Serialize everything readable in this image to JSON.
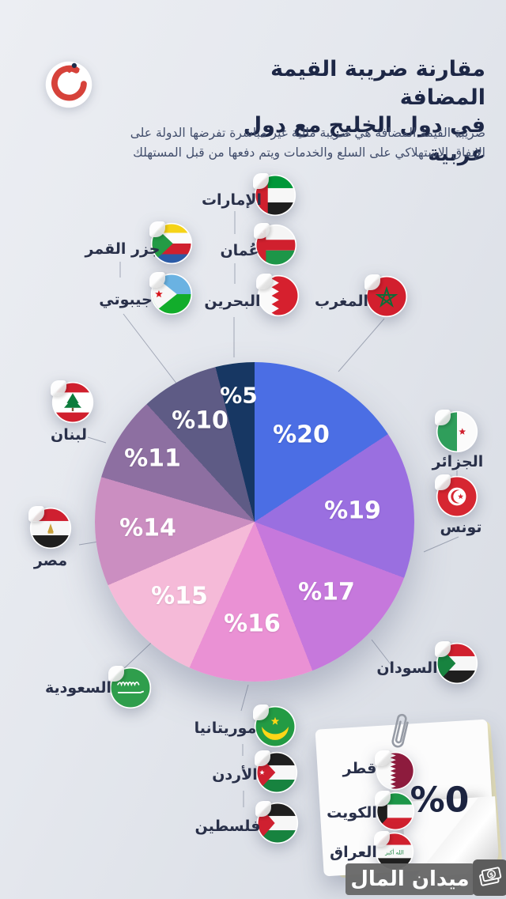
{
  "header": {
    "logo_icon": "khaleej-falcon-logo",
    "title_line1": "مقارنة ضريبة القيمة المضافة",
    "title_line2": "في دول الخليج مع دول عربية",
    "subtitle": "ضريبة القيمة المضافة هي ضريبة مالية غير مباشرة تفرضها الدولة على الإنفاق الاستهلاكي على السلع والخدمات ويتم دفعها من قبل المستهلك"
  },
  "chart_data": {
    "type": "pie",
    "title": "مقارنة ضريبة القيمة المضافة في دول الخليج مع دول عربية",
    "unit": "%",
    "slices": [
      {
        "label": "%20",
        "value": 20,
        "color": "#4b6ee4",
        "countries": [
          "المغرب"
        ]
      },
      {
        "label": "%19",
        "value": 19,
        "color": "#9a6fe0",
        "countries": [
          "الجزائر",
          "تونس"
        ]
      },
      {
        "label": "%17",
        "value": 17,
        "color": "#c678dc",
        "countries": [
          "السودان"
        ]
      },
      {
        "label": "%16",
        "value": 16,
        "color": "#ea91d4",
        "countries": [
          "موريتانيا",
          "الأردن",
          "فلسطين"
        ]
      },
      {
        "label": "%15",
        "value": 15,
        "color": "#f5bad8",
        "countries": [
          "السعودية"
        ]
      },
      {
        "label": "%14",
        "value": 14,
        "color": "#cb8ec1",
        "countries": [
          "مصر"
        ]
      },
      {
        "label": "%11",
        "value": 11,
        "color": "#8d6fa1",
        "countries": [
          "لبنان"
        ]
      },
      {
        "label": "%10",
        "value": 10,
        "color": "#5e5b85",
        "countries": [
          "جزر القمر",
          "جيبوتي"
        ]
      },
      {
        "label": "%5",
        "value": 5,
        "color": "#173763",
        "countries": [
          "الإمارات",
          "عُمان",
          "البحرين"
        ]
      }
    ],
    "zero_group": {
      "label": "%0",
      "countries": [
        "قطر",
        "الكويت",
        "العراق"
      ]
    }
  },
  "countries": [
    {
      "id": "uae",
      "label": "الإمارات",
      "flag_icon": "uae-flag-icon"
    },
    {
      "id": "oman",
      "label": "عُمان",
      "flag_icon": "oman-flag-icon"
    },
    {
      "id": "bahrain",
      "label": "البحرين",
      "flag_icon": "bahrain-flag-icon"
    },
    {
      "id": "morocco",
      "label": "المغرب",
      "flag_icon": "morocco-flag-icon"
    },
    {
      "id": "comoros",
      "label": "جزر القمر",
      "flag_icon": "comoros-flag-icon"
    },
    {
      "id": "djibouti",
      "label": "جيبوتي",
      "flag_icon": "djibouti-flag-icon"
    },
    {
      "id": "lebanon",
      "label": "لبنان",
      "flag_icon": "lebanon-flag-icon"
    },
    {
      "id": "egypt",
      "label": "مصر",
      "flag_icon": "egypt-flag-icon"
    },
    {
      "id": "saudi",
      "label": "السعودية",
      "flag_icon": "saudi-flag-icon"
    },
    {
      "id": "algeria",
      "label": "الجزائر",
      "flag_icon": "algeria-flag-icon"
    },
    {
      "id": "tunisia",
      "label": "تونس",
      "flag_icon": "tunisia-flag-icon"
    },
    {
      "id": "sudan",
      "label": "السودان",
      "flag_icon": "sudan-flag-icon"
    },
    {
      "id": "mauritania",
      "label": "موريتانيا",
      "flag_icon": "mauritania-flag-icon"
    },
    {
      "id": "jordan",
      "label": "الأردن",
      "flag_icon": "jordan-flag-icon"
    },
    {
      "id": "palestine",
      "label": "فلسطين",
      "flag_icon": "palestine-flag-icon"
    }
  ],
  "zero_card": {
    "value_label": "%0",
    "items": [
      {
        "id": "qatar",
        "label": "قطر",
        "flag_icon": "qatar-flag-icon"
      },
      {
        "id": "kuwait",
        "label": "الكويت",
        "flag_icon": "kuwait-flag-icon"
      },
      {
        "id": "iraq",
        "label": "العراق",
        "flag_icon": "iraq-flag-icon"
      }
    ]
  },
  "watermark": {
    "text": "ميدان المال",
    "icon": "banknotes-dollar-icon"
  }
}
